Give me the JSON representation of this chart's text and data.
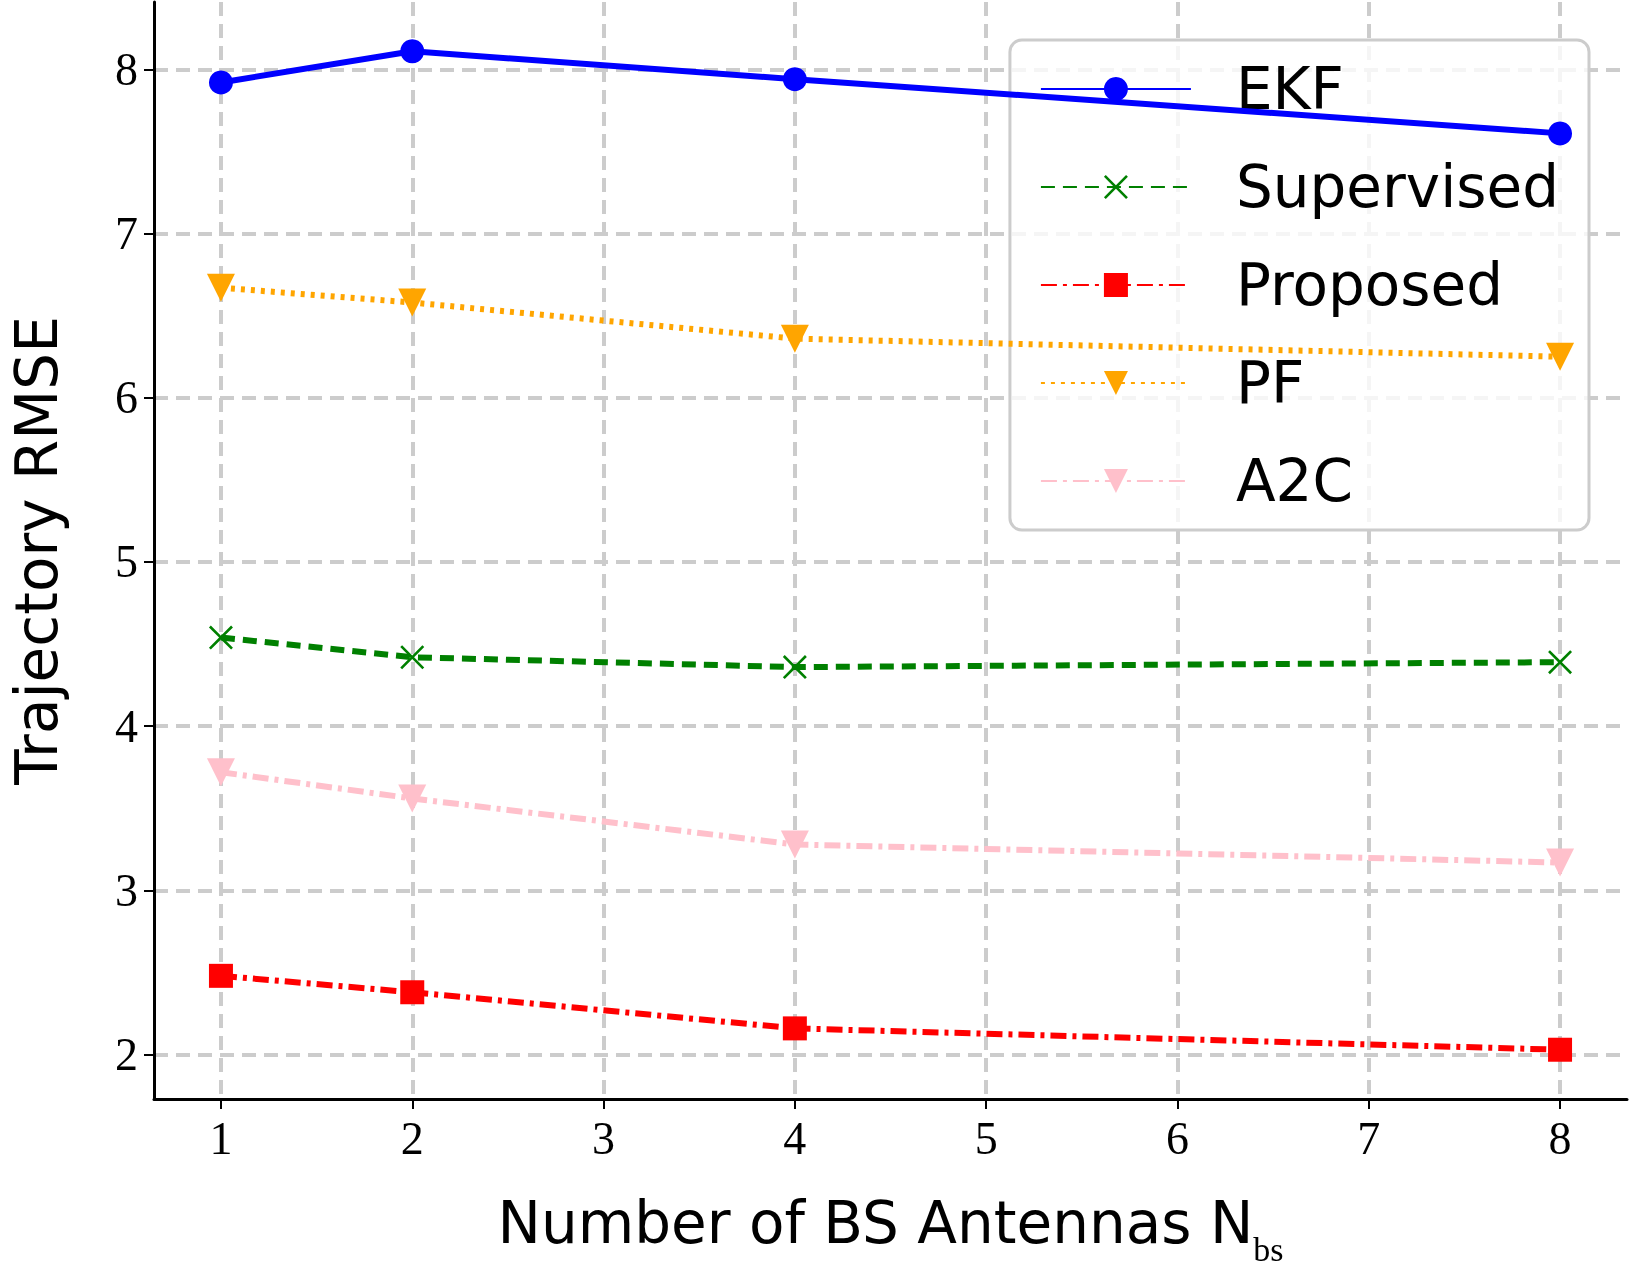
{
  "chart_data": {
    "type": "line",
    "xlabel": "Number of BS Antennas N$_{bs}$",
    "ylabel": "Trajectory RMSE",
    "x": [
      1,
      2,
      4,
      8
    ],
    "series": [
      {
        "name": "EKF",
        "color": "#0000ff",
        "values": [
          7.92,
          8.11,
          7.94,
          7.61
        ],
        "marker": "circle",
        "line_style": "solid"
      },
      {
        "name": "Supervised",
        "color": "#008000",
        "values": [
          4.54,
          4.42,
          4.36,
          4.39
        ],
        "marker": "cross",
        "line_style": "dashed"
      },
      {
        "name": "Proposed",
        "color": "#ff0000",
        "values": [
          2.48,
          2.38,
          2.16,
          2.03
        ],
        "marker": "square",
        "line_style": "dashdot"
      },
      {
        "name": "PF",
        "color": "#ffa500",
        "values": [
          6.67,
          6.58,
          6.36,
          6.25
        ],
        "marker": "triangle",
        "line_style": "dotted"
      },
      {
        "name": "A2C",
        "color": "#ffc0cb",
        "values": [
          3.72,
          3.56,
          3.28,
          3.17
        ],
        "marker": "triangle",
        "line_style": "dashdot"
      }
    ],
    "xlim": [
      0.65,
      8.35
    ],
    "xticks": [
      1,
      2,
      3,
      4,
      5,
      6,
      7,
      8
    ],
    "ylim": [
      1.73,
      8.41
    ],
    "yticks": [
      2,
      3,
      4,
      5,
      6,
      7,
      8
    ],
    "grid": true,
    "legend": "top right"
  }
}
